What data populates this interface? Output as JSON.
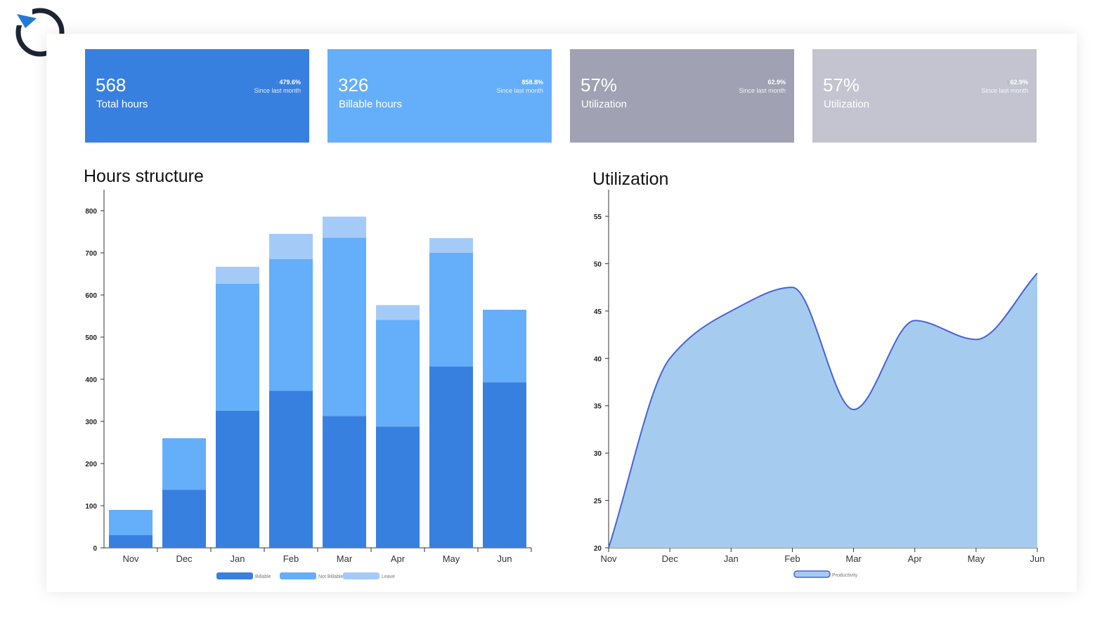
{
  "logo": {
    "icon": "circular-arrow-logo-icon"
  },
  "cards": [
    {
      "value": "568",
      "label": "Total hours",
      "change": "479.6%",
      "since": "Since last month",
      "color": "#3880df"
    },
    {
      "value": "326",
      "label": "Billable hours",
      "change": "858.8%",
      "since": "Since last month",
      "color": "#65aefa"
    },
    {
      "value": "57%",
      "label": "Utilization",
      "change": "62.9%",
      "since": "Since last month",
      "color": "#a0a2b4"
    },
    {
      "value": "57%",
      "label": "Utilization",
      "change": "62.9%",
      "since": "Since last month",
      "color": "#c3c4d0"
    }
  ],
  "hours_chart": {
    "title": "Hours structure"
  },
  "util_chart": {
    "title": "Utilization"
  },
  "chart_data": [
    {
      "type": "bar",
      "stacked": true,
      "title": "Hours structure",
      "categories": [
        "Nov",
        "Dec",
        "Jan",
        "Feb",
        "Mar",
        "Apr",
        "May",
        "Jun"
      ],
      "series": [
        {
          "name": "Billable",
          "color": "#3880df",
          "values": [
            30,
            138,
            325,
            373,
            313,
            288,
            430,
            393
          ]
        },
        {
          "name": "Not Billable",
          "color": "#65aefa",
          "values": [
            60,
            122,
            302,
            312,
            423,
            253,
            270,
            172
          ]
        },
        {
          "name": "Leave",
          "color": "#a4cbf8",
          "values": [
            0,
            0,
            40,
            60,
            50,
            35,
            35,
            0
          ]
        }
      ],
      "ylim": [
        0,
        800
      ],
      "yticks": [
        0,
        100,
        200,
        300,
        400,
        500,
        600,
        700,
        800
      ],
      "legend": "bottom"
    },
    {
      "type": "area",
      "title": "Utilization",
      "categories": [
        "Nov",
        "Dec",
        "Jan",
        "Feb",
        "Mar",
        "Apr",
        "May",
        "Jun"
      ],
      "series": [
        {
          "name": "Productivity",
          "color": "#a5ccee",
          "line_color": "#4a61d8",
          "values": [
            20,
            40,
            45,
            47.5,
            34.6,
            44,
            42,
            49
          ]
        }
      ],
      "ylim": [
        20,
        55
      ],
      "yticks": [
        20,
        25,
        30,
        35,
        40,
        45,
        50,
        55
      ],
      "legend": "bottom"
    }
  ]
}
